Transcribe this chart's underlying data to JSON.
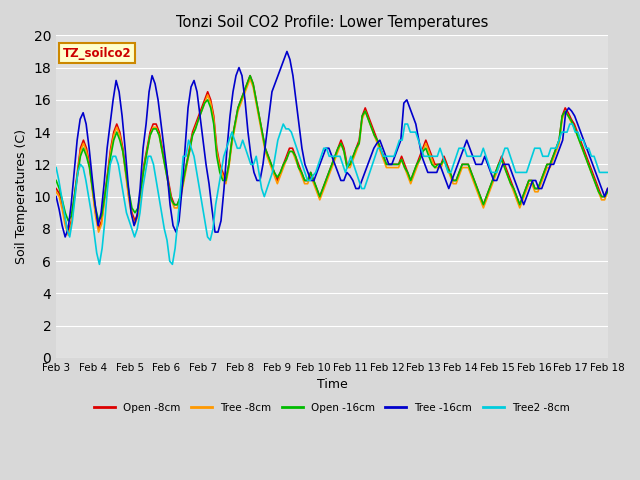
{
  "title": "Tonzi Soil CO2 Profile: Lower Temperatures",
  "xlabel": "Time",
  "ylabel": "Soil Temperatures (C)",
  "annotation": "TZ_soilco2",
  "annotation_color": "#cc0000",
  "annotation_bg": "#ffffcc",
  "annotation_border": "#cc8800",
  "ylim": [
    0,
    20
  ],
  "yticks": [
    0,
    2,
    4,
    6,
    8,
    10,
    12,
    14,
    16,
    18,
    20
  ],
  "xtick_labels": [
    "Feb 3",
    "Feb 4",
    "Feb 5",
    "Feb 6",
    "Feb 7",
    "Feb 8",
    "Feb 9",
    "Feb 10",
    "Feb 11",
    "Feb 12",
    "Feb 13",
    "Feb 14",
    "Feb 15",
    "Feb 16",
    "Feb 17",
    "Feb 18"
  ],
  "bg_color": "#e0e0e0",
  "grid_color": "#ffffff",
  "fig_bg": "#d8d8d8",
  "series": {
    "Open -8cm": {
      "color": "#dd0000",
      "lw": 1.2
    },
    "Tree -8cm": {
      "color": "#ff9900",
      "lw": 1.2
    },
    "Open -16cm": {
      "color": "#00bb00",
      "lw": 1.2
    },
    "Tree -16cm": {
      "color": "#0000cc",
      "lw": 1.2
    },
    "Tree2 -8cm": {
      "color": "#00ccdd",
      "lw": 1.2
    }
  },
  "open8": [
    10.5,
    10.2,
    9.5,
    8.5,
    7.8,
    8.5,
    10.0,
    11.5,
    13.0,
    13.5,
    13.0,
    12.0,
    10.5,
    9.0,
    8.0,
    8.5,
    10.0,
    11.5,
    13.0,
    14.0,
    14.5,
    14.0,
    13.0,
    11.5,
    10.0,
    9.0,
    8.5,
    9.0,
    10.5,
    12.0,
    13.0,
    14.0,
    14.5,
    14.5,
    14.0,
    13.0,
    12.0,
    11.0,
    10.0,
    9.5,
    9.5,
    10.0,
    11.0,
    12.0,
    13.0,
    14.0,
    14.5,
    15.0,
    15.5,
    16.0,
    16.5,
    16.0,
    15.0,
    13.0,
    12.0,
    11.5,
    11.0,
    12.0,
    13.5,
    14.5,
    15.5,
    16.0,
    16.5,
    17.0,
    17.5,
    17.0,
    16.0,
    15.0,
    14.0,
    13.0,
    12.5,
    12.0,
    11.5,
    11.0,
    11.5,
    12.0,
    12.5,
    13.0,
    13.0,
    12.5,
    12.0,
    11.5,
    11.0,
    11.0,
    11.5,
    11.0,
    10.5,
    10.0,
    10.5,
    11.0,
    11.5,
    12.0,
    12.5,
    13.0,
    13.5,
    13.0,
    12.0,
    12.0,
    12.5,
    13.0,
    13.5,
    15.0,
    15.5,
    15.0,
    14.5,
    14.0,
    13.5,
    13.0,
    12.5,
    12.0,
    12.0,
    12.0,
    12.0,
    12.0,
    12.5,
    12.0,
    11.5,
    11.0,
    11.5,
    12.0,
    12.5,
    13.0,
    13.5,
    13.0,
    12.5,
    12.0,
    12.0,
    12.0,
    12.5,
    12.0,
    11.5,
    11.0,
    11.0,
    11.5,
    12.0,
    12.0,
    12.0,
    11.5,
    11.0,
    10.5,
    10.0,
    9.5,
    10.0,
    10.5,
    11.0,
    11.5,
    12.0,
    12.5,
    12.0,
    11.5,
    11.0,
    10.5,
    10.0,
    9.5,
    10.0,
    10.5,
    11.0,
    11.0,
    10.5,
    10.5,
    11.0,
    11.5,
    12.0,
    12.0,
    12.5,
    13.0,
    13.5,
    15.0,
    15.5,
    15.2,
    14.8,
    14.5,
    14.0,
    13.5,
    13.0,
    12.5,
    12.0,
    11.5,
    11.0,
    10.5,
    10.0,
    10.0,
    10.5
  ],
  "tree8": [
    10.3,
    10.0,
    9.2,
    8.2,
    7.6,
    8.3,
    9.8,
    11.3,
    12.8,
    13.3,
    12.8,
    11.8,
    10.3,
    8.8,
    7.8,
    8.3,
    9.8,
    11.3,
    12.8,
    13.8,
    14.3,
    13.8,
    12.8,
    11.3,
    9.8,
    8.8,
    8.3,
    8.8,
    10.3,
    11.8,
    12.8,
    13.8,
    14.3,
    14.3,
    13.8,
    12.8,
    11.8,
    10.8,
    9.8,
    9.3,
    9.3,
    9.8,
    10.8,
    11.8,
    12.8,
    13.8,
    14.3,
    14.8,
    15.3,
    15.8,
    16.3,
    15.8,
    14.8,
    12.8,
    11.8,
    11.3,
    10.8,
    11.8,
    13.3,
    14.3,
    15.3,
    15.8,
    16.3,
    16.8,
    17.3,
    16.8,
    15.8,
    14.8,
    13.8,
    12.8,
    12.3,
    11.8,
    11.3,
    10.8,
    11.3,
    11.8,
    12.3,
    12.8,
    12.8,
    12.3,
    11.8,
    11.3,
    10.8,
    10.8,
    11.3,
    10.8,
    10.3,
    9.8,
    10.3,
    10.8,
    11.3,
    11.8,
    12.3,
    12.8,
    13.3,
    12.8,
    11.8,
    11.8,
    12.3,
    12.8,
    13.3,
    14.8,
    15.3,
    14.8,
    14.3,
    13.8,
    13.3,
    12.8,
    12.3,
    11.8,
    11.8,
    11.8,
    11.8,
    11.8,
    12.3,
    11.8,
    11.3,
    10.8,
    11.3,
    11.8,
    12.3,
    12.8,
    13.3,
    12.8,
    12.3,
    11.8,
    11.8,
    11.8,
    12.3,
    11.8,
    11.3,
    10.8,
    10.8,
    11.3,
    11.8,
    11.8,
    11.8,
    11.3,
    10.8,
    10.3,
    9.8,
    9.3,
    9.8,
    10.3,
    10.8,
    11.3,
    11.8,
    12.3,
    11.8,
    11.3,
    10.8,
    10.3,
    9.8,
    9.3,
    9.8,
    10.3,
    10.8,
    10.8,
    10.3,
    10.3,
    10.8,
    11.3,
    11.8,
    11.8,
    12.3,
    12.8,
    13.3,
    14.8,
    15.3,
    15.0,
    14.6,
    14.3,
    13.8,
    13.3,
    12.8,
    12.3,
    11.8,
    11.3,
    10.8,
    10.3,
    9.8,
    9.8,
    10.3
  ],
  "open16": [
    11.0,
    10.5,
    9.8,
    9.0,
    8.5,
    8.8,
    10.0,
    11.3,
    12.5,
    13.0,
    12.5,
    11.8,
    10.5,
    9.3,
    8.5,
    8.8,
    10.0,
    11.3,
    12.5,
    13.5,
    14.0,
    13.5,
    12.8,
    11.5,
    10.3,
    9.3,
    9.0,
    9.3,
    10.5,
    11.8,
    12.8,
    13.8,
    14.2,
    14.2,
    13.8,
    12.8,
    11.8,
    10.8,
    9.8,
    9.5,
    9.5,
    10.0,
    11.0,
    12.0,
    12.8,
    13.8,
    14.2,
    14.8,
    15.3,
    15.8,
    16.0,
    15.5,
    14.5,
    12.5,
    11.5,
    11.0,
    11.0,
    12.0,
    13.5,
    14.5,
    15.5,
    16.0,
    16.5,
    17.0,
    17.5,
    17.0,
    16.0,
    15.0,
    14.0,
    13.0,
    12.5,
    12.0,
    11.5,
    11.2,
    11.5,
    12.0,
    12.3,
    12.8,
    12.8,
    12.5,
    11.8,
    11.5,
    11.0,
    11.0,
    11.5,
    11.0,
    10.5,
    10.0,
    10.5,
    11.0,
    11.5,
    12.0,
    12.5,
    13.0,
    13.3,
    12.8,
    11.8,
    12.0,
    12.5,
    13.0,
    13.3,
    15.0,
    15.3,
    14.8,
    14.3,
    13.8,
    13.5,
    13.0,
    12.5,
    12.0,
    12.0,
    12.0,
    12.0,
    12.0,
    12.3,
    11.8,
    11.5,
    11.0,
    11.5,
    12.0,
    12.3,
    12.8,
    13.0,
    12.5,
    12.0,
    11.8,
    12.0,
    12.0,
    12.3,
    11.8,
    11.5,
    11.0,
    11.0,
    11.5,
    12.0,
    12.0,
    12.0,
    11.5,
    11.0,
    10.5,
    10.0,
    9.5,
    10.0,
    10.5,
    11.0,
    11.5,
    12.0,
    12.3,
    11.8,
    11.3,
    10.8,
    10.5,
    10.0,
    9.5,
    10.0,
    10.5,
    11.0,
    11.0,
    10.5,
    10.5,
    11.0,
    11.5,
    12.0,
    12.0,
    12.5,
    13.0,
    13.5,
    15.0,
    15.3,
    15.0,
    14.7,
    14.3,
    13.8,
    13.3,
    12.8,
    12.3,
    11.8,
    11.3,
    10.8,
    10.3,
    10.0,
    10.0,
    10.3
  ],
  "tree16": [
    10.0,
    9.2,
    8.2,
    7.5,
    8.0,
    9.5,
    11.5,
    13.5,
    14.8,
    15.2,
    14.5,
    13.0,
    11.2,
    9.5,
    8.2,
    9.0,
    10.8,
    13.0,
    14.5,
    16.0,
    17.2,
    16.5,
    15.0,
    13.0,
    10.8,
    9.0,
    8.2,
    8.8,
    10.5,
    13.0,
    14.5,
    16.5,
    17.5,
    17.0,
    16.0,
    14.5,
    13.0,
    11.5,
    9.5,
    8.2,
    7.8,
    8.5,
    10.5,
    13.0,
    15.5,
    16.8,
    17.2,
    16.5,
    15.0,
    13.5,
    12.0,
    10.8,
    9.2,
    7.8,
    7.8,
    8.5,
    10.5,
    13.0,
    15.0,
    16.5,
    17.5,
    18.0,
    17.5,
    16.0,
    14.0,
    12.5,
    11.5,
    11.0,
    11.0,
    12.0,
    13.5,
    15.0,
    16.5,
    17.0,
    17.5,
    18.0,
    18.5,
    19.0,
    18.5,
    17.5,
    16.0,
    14.5,
    13.0,
    12.0,
    11.5,
    11.0,
    11.0,
    11.5,
    12.0,
    12.5,
    13.0,
    13.0,
    12.5,
    12.0,
    11.5,
    11.0,
    11.0,
    11.5,
    11.3,
    11.0,
    10.5,
    10.5,
    11.0,
    11.5,
    12.0,
    12.5,
    13.0,
    13.3,
    13.5,
    13.0,
    12.5,
    12.0,
    12.0,
    12.5,
    13.0,
    13.5,
    15.8,
    16.0,
    15.5,
    15.0,
    14.5,
    13.5,
    12.5,
    12.0,
    11.5,
    11.5,
    11.5,
    11.5,
    12.0,
    11.5,
    11.0,
    10.5,
    11.0,
    11.5,
    12.0,
    12.5,
    13.0,
    13.5,
    13.0,
    12.5,
    12.0,
    12.0,
    12.0,
    12.5,
    12.0,
    11.5,
    11.0,
    11.0,
    11.5,
    12.0,
    12.0,
    12.0,
    11.5,
    11.0,
    10.5,
    10.0,
    9.5,
    10.0,
    10.5,
    11.0,
    11.0,
    10.5,
    10.5,
    11.0,
    11.5,
    12.0,
    12.0,
    12.5,
    13.0,
    13.5,
    15.2,
    15.5,
    15.3,
    15.0,
    14.5,
    14.0,
    13.5,
    13.0,
    12.5,
    12.0,
    11.5,
    11.0,
    10.5,
    10.0,
    10.5
  ],
  "tree28": [
    11.8,
    11.0,
    10.0,
    9.0,
    8.0,
    7.5,
    8.5,
    10.0,
    11.5,
    12.0,
    11.8,
    11.0,
    10.0,
    9.0,
    7.8,
    6.5,
    5.8,
    6.8,
    8.5,
    10.5,
    12.0,
    12.5,
    12.5,
    12.0,
    11.0,
    10.0,
    9.0,
    8.5,
    8.0,
    7.5,
    8.0,
    9.0,
    10.5,
    11.5,
    12.5,
    12.5,
    12.0,
    11.0,
    10.0,
    9.0,
    8.0,
    7.3,
    6.0,
    5.8,
    6.8,
    8.5,
    10.5,
    12.5,
    12.5,
    13.5,
    13.0,
    12.5,
    11.5,
    10.5,
    9.5,
    8.5,
    7.5,
    7.3,
    8.0,
    9.5,
    10.5,
    11.5,
    12.5,
    13.0,
    13.5,
    14.0,
    13.5,
    13.0,
    13.0,
    13.5,
    13.0,
    12.5,
    12.0,
    12.0,
    12.5,
    11.5,
    10.5,
    10.0,
    10.5,
    11.0,
    11.5,
    12.5,
    13.5,
    14.0,
    14.5,
    14.2,
    14.2,
    14.0,
    13.5,
    13.0,
    12.5,
    12.0,
    11.5,
    11.0,
    11.0,
    11.3,
    11.5,
    12.0,
    12.5,
    13.0,
    13.0,
    12.5,
    12.5,
    12.5,
    12.5,
    12.5,
    12.0,
    11.5,
    12.0,
    12.5,
    12.0,
    11.5,
    11.0,
    10.5,
    10.5,
    11.0,
    11.5,
    12.0,
    12.5,
    13.0,
    13.0,
    12.5,
    12.5,
    12.5,
    12.5,
    12.5,
    13.0,
    13.5,
    13.5,
    14.5,
    14.5,
    14.0,
    14.0,
    14.0,
    13.5,
    13.0,
    12.5,
    12.5,
    12.5,
    12.5,
    12.5,
    12.5,
    13.0,
    12.5,
    12.0,
    11.5,
    11.5,
    12.0,
    12.5,
    13.0,
    13.0,
    13.0,
    12.5,
    12.5,
    12.5,
    12.5,
    12.5,
    12.5,
    13.0,
    12.5,
    12.0,
    11.5,
    11.5,
    11.5,
    12.0,
    12.5,
    13.0,
    13.0,
    12.5,
    12.0,
    11.5,
    11.5,
    11.5,
    11.5,
    11.5,
    12.0,
    12.5,
    13.0,
    13.0,
    13.0,
    12.5,
    12.5,
    12.5,
    13.0,
    13.0,
    13.0,
    13.5,
    14.0,
    14.0,
    14.0,
    14.5,
    14.5,
    14.0,
    14.0,
    13.5,
    13.5,
    13.0,
    13.0,
    12.5,
    12.5,
    12.0,
    11.5,
    11.5,
    11.5,
    11.5
  ]
}
